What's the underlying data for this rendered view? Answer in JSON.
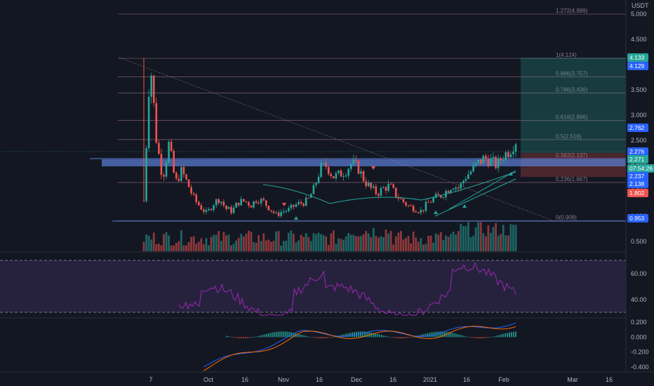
{
  "colors": {
    "background": "#131722",
    "grid": "#1e222d",
    "up": "#26a69a",
    "down": "#ef5350",
    "fib_line": "#9c6f86",
    "zone_blue": "#5b7fd6",
    "rsi_band": "#2a1e3f",
    "rsi_line": "#9c27b0",
    "macd_line": "#2962ff",
    "signal_line": "#ff6d00"
  },
  "price_axis": {
    "unit": "USDT",
    "labels": [
      "5.000",
      "4.500",
      "4.000",
      "3.500",
      "3.000",
      "2.500",
      "2.000",
      "1.500",
      "1.000",
      "0.500"
    ]
  },
  "rsi_axis": {
    "labels": [
      "60.00",
      "40.00"
    ]
  },
  "macd_axis": {
    "labels": [
      "0.200",
      "0.000",
      "-0.200",
      "-0.400"
    ]
  },
  "time_axis": {
    "labels": [
      "7",
      "Oct",
      "16",
      "Nov",
      "16",
      "Dec",
      "16",
      "2021",
      "16",
      "Feb",
      "Mar",
      "16"
    ]
  },
  "price_badges": [
    {
      "text": "4.133",
      "color": "#26a69a"
    },
    {
      "text": "4.129",
      "color": "#2962ff"
    },
    {
      "text": "2.762",
      "color": "#2962ff"
    },
    {
      "text": "2.276",
      "color": "#2962ff"
    },
    {
      "text": "2.271",
      "color": "#26a69a"
    },
    {
      "text": "07:54:26",
      "color": "#26a69a"
    },
    {
      "text": "2.237",
      "color": "#2962ff"
    },
    {
      "text": "2.138",
      "color": "#2962ff"
    },
    {
      "text": "1.802",
      "color": "#ef5350"
    },
    {
      "text": "0.953",
      "color": "#2962ff"
    }
  ],
  "chart_data": {
    "type": "candlestick",
    "fib_levels": [
      {
        "label": "1.272(4.999)",
        "value": 4.999
      },
      {
        "label": "1(4.124)",
        "value": 4.124
      },
      {
        "label": "0.886(3.757)",
        "value": 3.757
      },
      {
        "label": "0.786(3.436)",
        "value": 3.436
      },
      {
        "label": "0.618(2.896)",
        "value": 2.896
      },
      {
        "label": "0.5(2.516)",
        "value": 2.516
      },
      {
        "label": "0.382(2.137)",
        "value": 2.137
      },
      {
        "label": "0.236(1.667)",
        "value": 1.667
      },
      {
        "label": "0(0.908)",
        "value": 0.908
      }
    ],
    "ylim": [
      0.3,
      5.2
    ],
    "rsi_ylim": [
      25,
      75
    ],
    "rsi_bands": [
      70,
      30
    ],
    "macd_ylim": [
      -0.45,
      0.25
    ],
    "price_path": [
      1.3,
      4.13,
      2.5,
      1.75,
      2.45,
      1.65,
      1.9,
      1.62,
      1.33,
      1.18,
      1.05,
      1.25,
      1.35,
      1.15,
      1.1,
      1.28,
      1.3,
      1.22,
      1.35,
      1.28,
      1.15,
      1.02,
      1.1,
      1.12,
      1.22,
      1.26,
      1.3,
      1.55,
      1.95,
      2.0,
      1.78,
      1.82,
      1.9,
      2.05,
      1.95,
      1.7,
      1.55,
      1.45,
      1.55,
      1.6,
      1.42,
      1.3,
      1.2,
      1.15,
      1.1,
      1.25,
      1.35,
      1.4,
      1.5,
      1.62,
      1.55,
      1.78,
      1.9,
      2.05,
      2.15,
      2.1,
      2.0,
      2.2,
      2.3,
      2.5
    ]
  }
}
